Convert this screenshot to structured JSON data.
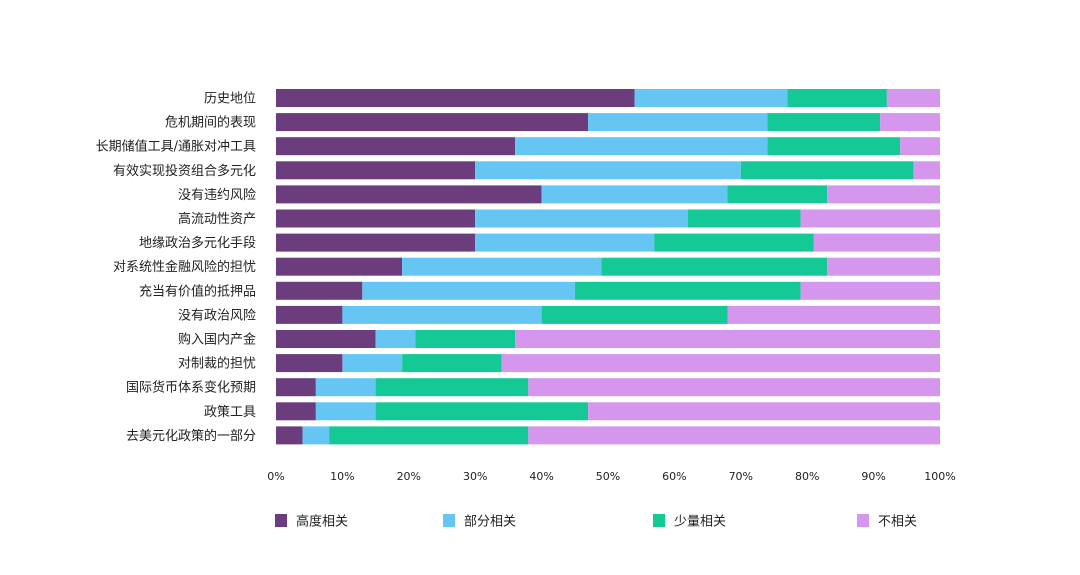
{
  "chart_data": {
    "type": "bar",
    "orientation": "horizontal",
    "stacked": true,
    "normalized": true,
    "categories": [
      "历史地位",
      "危机期间的表现",
      "长期储值工具/通胀对冲工具",
      "有效实现投资组合多元化",
      "没有违约风险",
      "高流动性资产",
      "地缘政治多元化手段",
      "对系统性金融风险的担忧",
      "充当有价值的抵押品",
      "没有政治风险",
      "购入国内产金",
      "对制裁的担忧",
      "国际货币体系变化预期",
      "政策工具",
      "去美元化政策的一部分"
    ],
    "series": [
      {
        "name": "高度相关",
        "color": "#6b3d7c",
        "values": [
          54,
          47,
          36,
          30,
          40,
          30,
          30,
          19,
          13,
          10,
          15,
          10,
          6,
          6,
          4
        ]
      },
      {
        "name": "部分相关",
        "color": "#66c6f3",
        "values": [
          23,
          27,
          38,
          40,
          28,
          32,
          27,
          30,
          32,
          30,
          6,
          9,
          9,
          9,
          4
        ]
      },
      {
        "name": "少量相关",
        "color": "#14c995",
        "values": [
          15,
          17,
          20,
          26,
          15,
          17,
          24,
          34,
          34,
          28,
          15,
          15,
          23,
          32,
          30
        ]
      },
      {
        "name": "不相关",
        "color": "#d596ee",
        "values": [
          8,
          9,
          6,
          4,
          17,
          21,
          19,
          17,
          21,
          32,
          64,
          66,
          62,
          53,
          62
        ]
      }
    ],
    "x_ticks": [
      "0%",
      "10%",
      "20%",
      "30%",
      "40%",
      "50%",
      "60%",
      "70%",
      "80%",
      "90%",
      "100%"
    ],
    "xlim": [
      0,
      100
    ],
    "grid": false,
    "legend_position": "bottom"
  }
}
